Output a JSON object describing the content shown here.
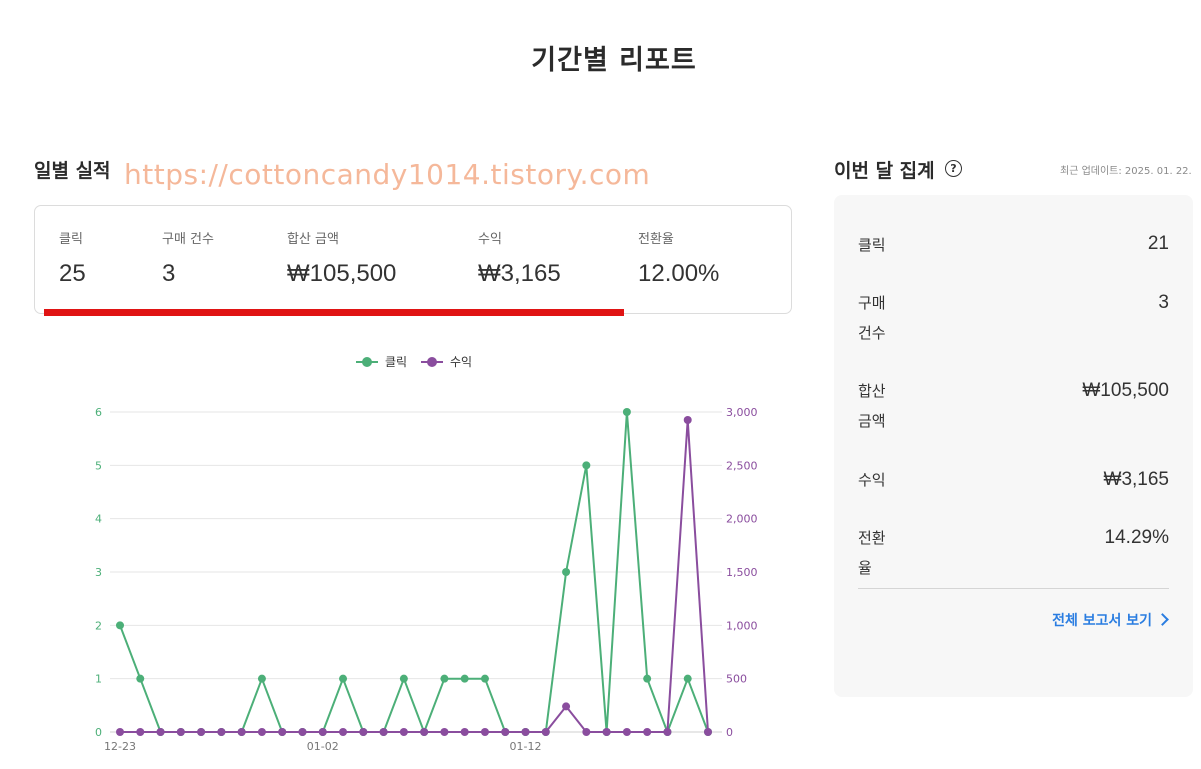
{
  "page": {
    "title": "기간별 리포트"
  },
  "daily": {
    "title": "일별 실적",
    "watermark": "https://cottoncandy1014.tistory.com",
    "stats": [
      {
        "label": "클릭",
        "value": "25"
      },
      {
        "label": "구매 건수",
        "value": "3"
      },
      {
        "label": "합산 금액",
        "value": "₩105,500"
      },
      {
        "label": "수익",
        "value": "₩3,165"
      },
      {
        "label": "전환율",
        "value": "12.00%"
      }
    ]
  },
  "colors": {
    "clicks": "#4caf78",
    "revenue": "#8a4d9e",
    "highlight": "#e01414",
    "link": "#2a7de1"
  },
  "chart_data": {
    "type": "line",
    "legend": [
      "클릭",
      "수익"
    ],
    "legend_position": "top-center",
    "x": [
      "12-23",
      "12-24",
      "12-25",
      "12-26",
      "12-27",
      "12-28",
      "12-29",
      "12-30",
      "12-31",
      "01-01",
      "01-02",
      "01-03",
      "01-04",
      "01-05",
      "01-06",
      "01-07",
      "01-08",
      "01-09",
      "01-10",
      "01-11",
      "01-12",
      "01-13",
      "01-14",
      "01-15",
      "01-16",
      "01-17",
      "01-18",
      "01-19",
      "01-20",
      "01-21"
    ],
    "x_tick_labels": [
      "12-23",
      "01-02",
      "01-12"
    ],
    "series": [
      {
        "name": "클릭",
        "axis": "left",
        "values": [
          2,
          1,
          0,
          0,
          0,
          0,
          0,
          1,
          0,
          0,
          0,
          1,
          0,
          0,
          1,
          0,
          1,
          1,
          1,
          0,
          0,
          0,
          3,
          5,
          0,
          6,
          1,
          0,
          1,
          0
        ]
      },
      {
        "name": "수익",
        "axis": "right",
        "values": [
          0,
          0,
          0,
          0,
          0,
          0,
          0,
          0,
          0,
          0,
          0,
          0,
          0,
          0,
          0,
          0,
          0,
          0,
          0,
          0,
          0,
          0,
          240,
          0,
          0,
          0,
          0,
          0,
          2925,
          0
        ]
      }
    ],
    "y_left": {
      "range": [
        0,
        6
      ],
      "ticks": [
        "0",
        "1",
        "2",
        "3",
        "4",
        "5",
        "6"
      ]
    },
    "y_right": {
      "range": [
        0,
        3000
      ],
      "ticks": [
        "0",
        "500",
        "1,000",
        "1,500",
        "2,000",
        "2,500",
        "3,000"
      ]
    },
    "grid": true
  },
  "summary": {
    "title": "이번 달 집계",
    "help_icon": "?",
    "updated": "최근 업데이트: 2025. 01. 22.",
    "rows": [
      {
        "label": "클릭",
        "value": "21"
      },
      {
        "label": "구매 건수",
        "value": "3"
      },
      {
        "label": "합산 금액",
        "value": "₩105,500"
      },
      {
        "label": "수익",
        "value": "₩3,165"
      },
      {
        "label": "전환율",
        "value": "14.29%"
      }
    ],
    "link_label": "전체 보고서 보기"
  }
}
